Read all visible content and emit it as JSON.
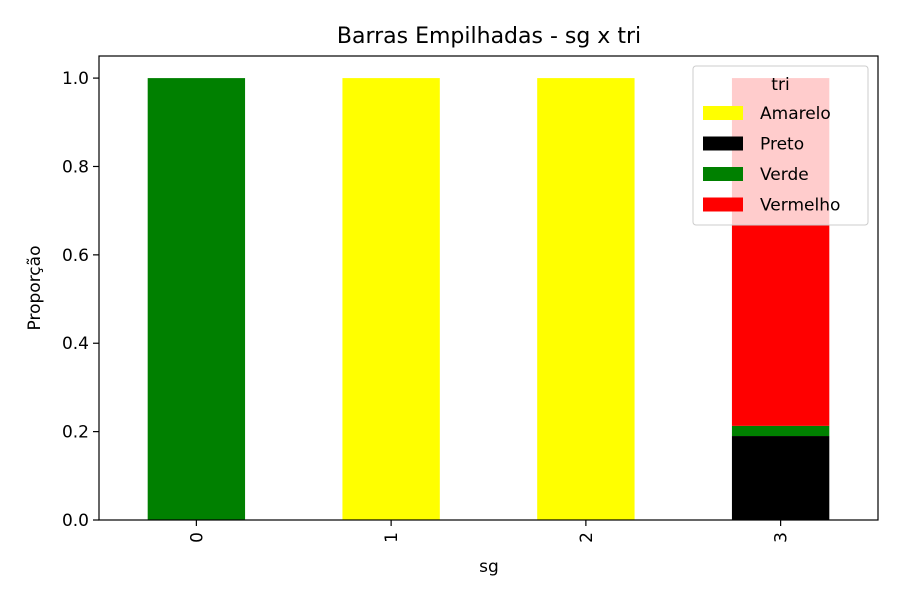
{
  "chart_data": {
    "type": "bar",
    "stacked": true,
    "title": "Barras Empilhadas - sg x tri",
    "xlabel": "sg",
    "ylabel": "Proporção",
    "categories": [
      "0",
      "1",
      "2",
      "3"
    ],
    "ylim": [
      0,
      1.05
    ],
    "yticks": [
      "0.0",
      "0.2",
      "0.4",
      "0.6",
      "0.8",
      "1.0"
    ],
    "grid": false,
    "legend": {
      "title": "tri",
      "placement": "top-right"
    },
    "series": [
      {
        "name": "Amarelo",
        "color": "#ffff00",
        "values": [
          0,
          1.0,
          1.0,
          0
        ]
      },
      {
        "name": "Preto",
        "color": "#000000",
        "values": [
          0,
          0,
          0,
          0.19
        ]
      },
      {
        "name": "Verde",
        "color": "#008000",
        "values": [
          1.0,
          0,
          0,
          0.023
        ]
      },
      {
        "name": "Vermelho",
        "color": "#ff0000",
        "values": [
          0,
          0,
          0,
          0.787
        ]
      }
    ]
  }
}
